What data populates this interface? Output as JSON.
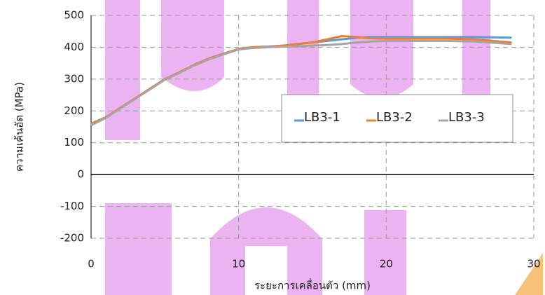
{
  "chart_data": {
    "type": "line",
    "x_label": "ระยะการเคลื่อนตัว (mm)",
    "y_label": "ความเค้นอัด (MPa)",
    "x": [
      0,
      1,
      2,
      3,
      4,
      5,
      6,
      7,
      8,
      9,
      10,
      11,
      12,
      13,
      14,
      15,
      16,
      17,
      18,
      19,
      20,
      22,
      24,
      26,
      28.5
    ],
    "series": [
      {
        "name": "LB3-1",
        "color": "#5b9bd5",
        "values": [
          160,
          180,
          210,
          240,
          270,
          300,
          320,
          345,
          365,
          380,
          395,
          400,
          402,
          405,
          410,
          415,
          420,
          425,
          430,
          432,
          432,
          432,
          432,
          432,
          430
        ]
      },
      {
        "name": "LB3-2",
        "color": "#ed7d31",
        "values": [
          160,
          180,
          210,
          240,
          270,
          300,
          322,
          345,
          365,
          380,
          395,
          400,
          402,
          405,
          410,
          415,
          425,
          435,
          432,
          428,
          427,
          427,
          427,
          425,
          415
        ]
      },
      {
        "name": "LB3-3",
        "color": "#a5a5a5",
        "values": [
          155,
          178,
          208,
          238,
          268,
          298,
          320,
          343,
          362,
          378,
          393,
          398,
          400,
          402,
          403,
          405,
          407,
          410,
          415,
          418,
          420,
          420,
          420,
          418,
          410
        ]
      }
    ],
    "xlim": [
      0,
      30
    ],
    "xticks": [
      0,
      10,
      20,
      30
    ],
    "ylim": [
      -200,
      500
    ],
    "yticks": [
      -200,
      -100,
      0,
      100,
      200,
      300,
      400,
      500
    ],
    "grid": true
  }
}
